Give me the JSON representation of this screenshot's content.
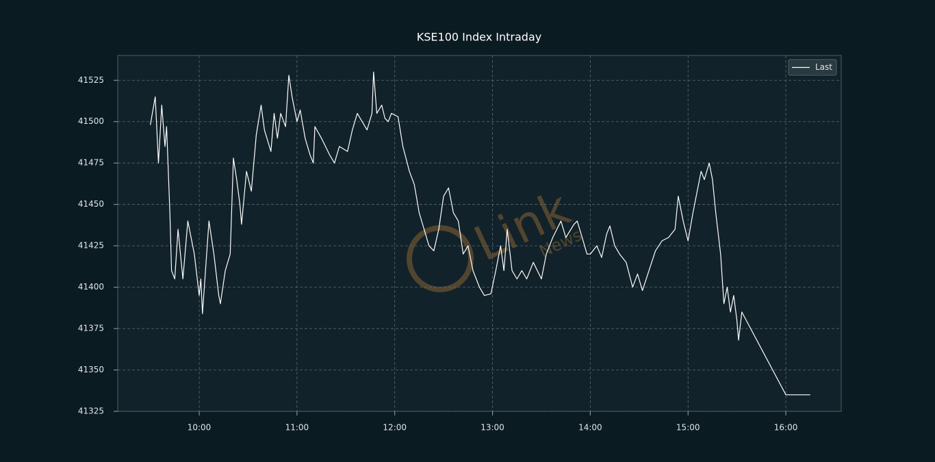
{
  "chart_data": {
    "type": "line",
    "title": "KSE100 Index Intraday",
    "watermark": "Link",
    "watermark_sub": "News",
    "x": [
      "09:30",
      "09:33",
      "09:35",
      "09:37",
      "09:39",
      "09:40",
      "09:42",
      "09:43",
      "09:45",
      "09:47",
      "09:50",
      "09:53",
      "09:57",
      "10:00",
      "10:01",
      "10:02",
      "10:06",
      "10:09",
      "10:12",
      "10:13",
      "10:16",
      "10:19",
      "10:21",
      "10:23",
      "10:25",
      "10:26",
      "10:29",
      "10:32",
      "10:35",
      "10:38",
      "10:40",
      "10:44",
      "10:46",
      "10:48",
      "10:50",
      "10:53",
      "10:55",
      "10:57",
      "11:00",
      "11:02",
      "11:05",
      "11:08",
      "11:10",
      "11:11",
      "11:15",
      "11:20",
      "11:23",
      "11:26",
      "11:31",
      "11:34",
      "11:37",
      "11:40",
      "11:43",
      "11:46",
      "11:47",
      "11:49",
      "11:52",
      "11:54",
      "11:56",
      "11:58",
      "12:02",
      "12:05",
      "12:09",
      "12:12",
      "12:15",
      "12:18",
      "12:21",
      "12:24",
      "12:27",
      "12:30",
      "12:33",
      "12:36",
      "12:39",
      "12:42",
      "12:45",
      "12:48",
      "12:52",
      "12:55",
      "12:59",
      "13:02",
      "13:05",
      "13:07",
      "13:09",
      "13:12",
      "13:15",
      "13:18",
      "13:21",
      "13:25",
      "13:30",
      "13:33",
      "13:37",
      "13:42",
      "13:45",
      "13:50",
      "13:52",
      "13:55",
      "13:58",
      "14:00",
      "14:04",
      "14:07",
      "14:10",
      "14:12",
      "14:15",
      "14:18",
      "14:22",
      "14:26",
      "14:29",
      "14:32",
      "14:36",
      "14:40",
      "14:44",
      "14:48",
      "14:52",
      "14:54",
      "14:57",
      "15:00",
      "15:03",
      "15:06",
      "15:08",
      "15:10",
      "15:13",
      "15:15",
      "15:17",
      "15:20",
      "15:22",
      "15:24",
      "15:26",
      "15:28",
      "15:30",
      "15:31",
      "15:33",
      "16:00",
      "16:15"
    ],
    "series": [
      {
        "name": "Last",
        "color": "#ffffff",
        "values": [
          41498,
          41515,
          41475,
          41510,
          41485,
          41497,
          41445,
          41410,
          41405,
          41435,
          41405,
          41440,
          41420,
          41395,
          41405,
          41384,
          41440,
          41420,
          41395,
          41390,
          41410,
          41420,
          41478,
          41465,
          41450,
          41438,
          41470,
          41458,
          41492,
          41510,
          41495,
          41482,
          41505,
          41490,
          41505,
          41497,
          41528,
          41515,
          41500,
          41507,
          41490,
          41480,
          41475,
          41497,
          41490,
          41480,
          41475,
          41485,
          41482,
          41495,
          41505,
          41500,
          41495,
          41505,
          41530,
          41505,
          41510,
          41502,
          41500,
          41505,
          41503,
          41485,
          41470,
          41462,
          41445,
          41435,
          41425,
          41422,
          41435,
          41455,
          41460,
          41445,
          41440,
          41420,
          41425,
          41410,
          41400,
          41395,
          41396,
          41410,
          41425,
          41410,
          41435,
          41410,
          41405,
          41410,
          41405,
          41415,
          41405,
          41420,
          41430,
          41440,
          41430,
          41438,
          41440,
          41430,
          41420,
          41420,
          41425,
          41418,
          41432,
          41437,
          41425,
          41420,
          41415,
          41400,
          41408,
          41398,
          41410,
          41422,
          41428,
          41430,
          41435,
          41455,
          41440,
          41428,
          41445,
          41460,
          41470,
          41465,
          41475,
          41465,
          41445,
          41420,
          41390,
          41400,
          41385,
          41395,
          41380,
          41368,
          41385,
          41335,
          41335
        ]
      }
    ],
    "xlim": [
      "09:10",
      "16:34"
    ],
    "xticks": [
      "10:00",
      "11:00",
      "12:00",
      "13:00",
      "14:00",
      "15:00",
      "16:00"
    ],
    "ylim": [
      41325,
      41540
    ],
    "yticks": [
      41325,
      41350,
      41375,
      41400,
      41425,
      41450,
      41475,
      41500,
      41525
    ],
    "grid": true,
    "legend": "upper right"
  }
}
